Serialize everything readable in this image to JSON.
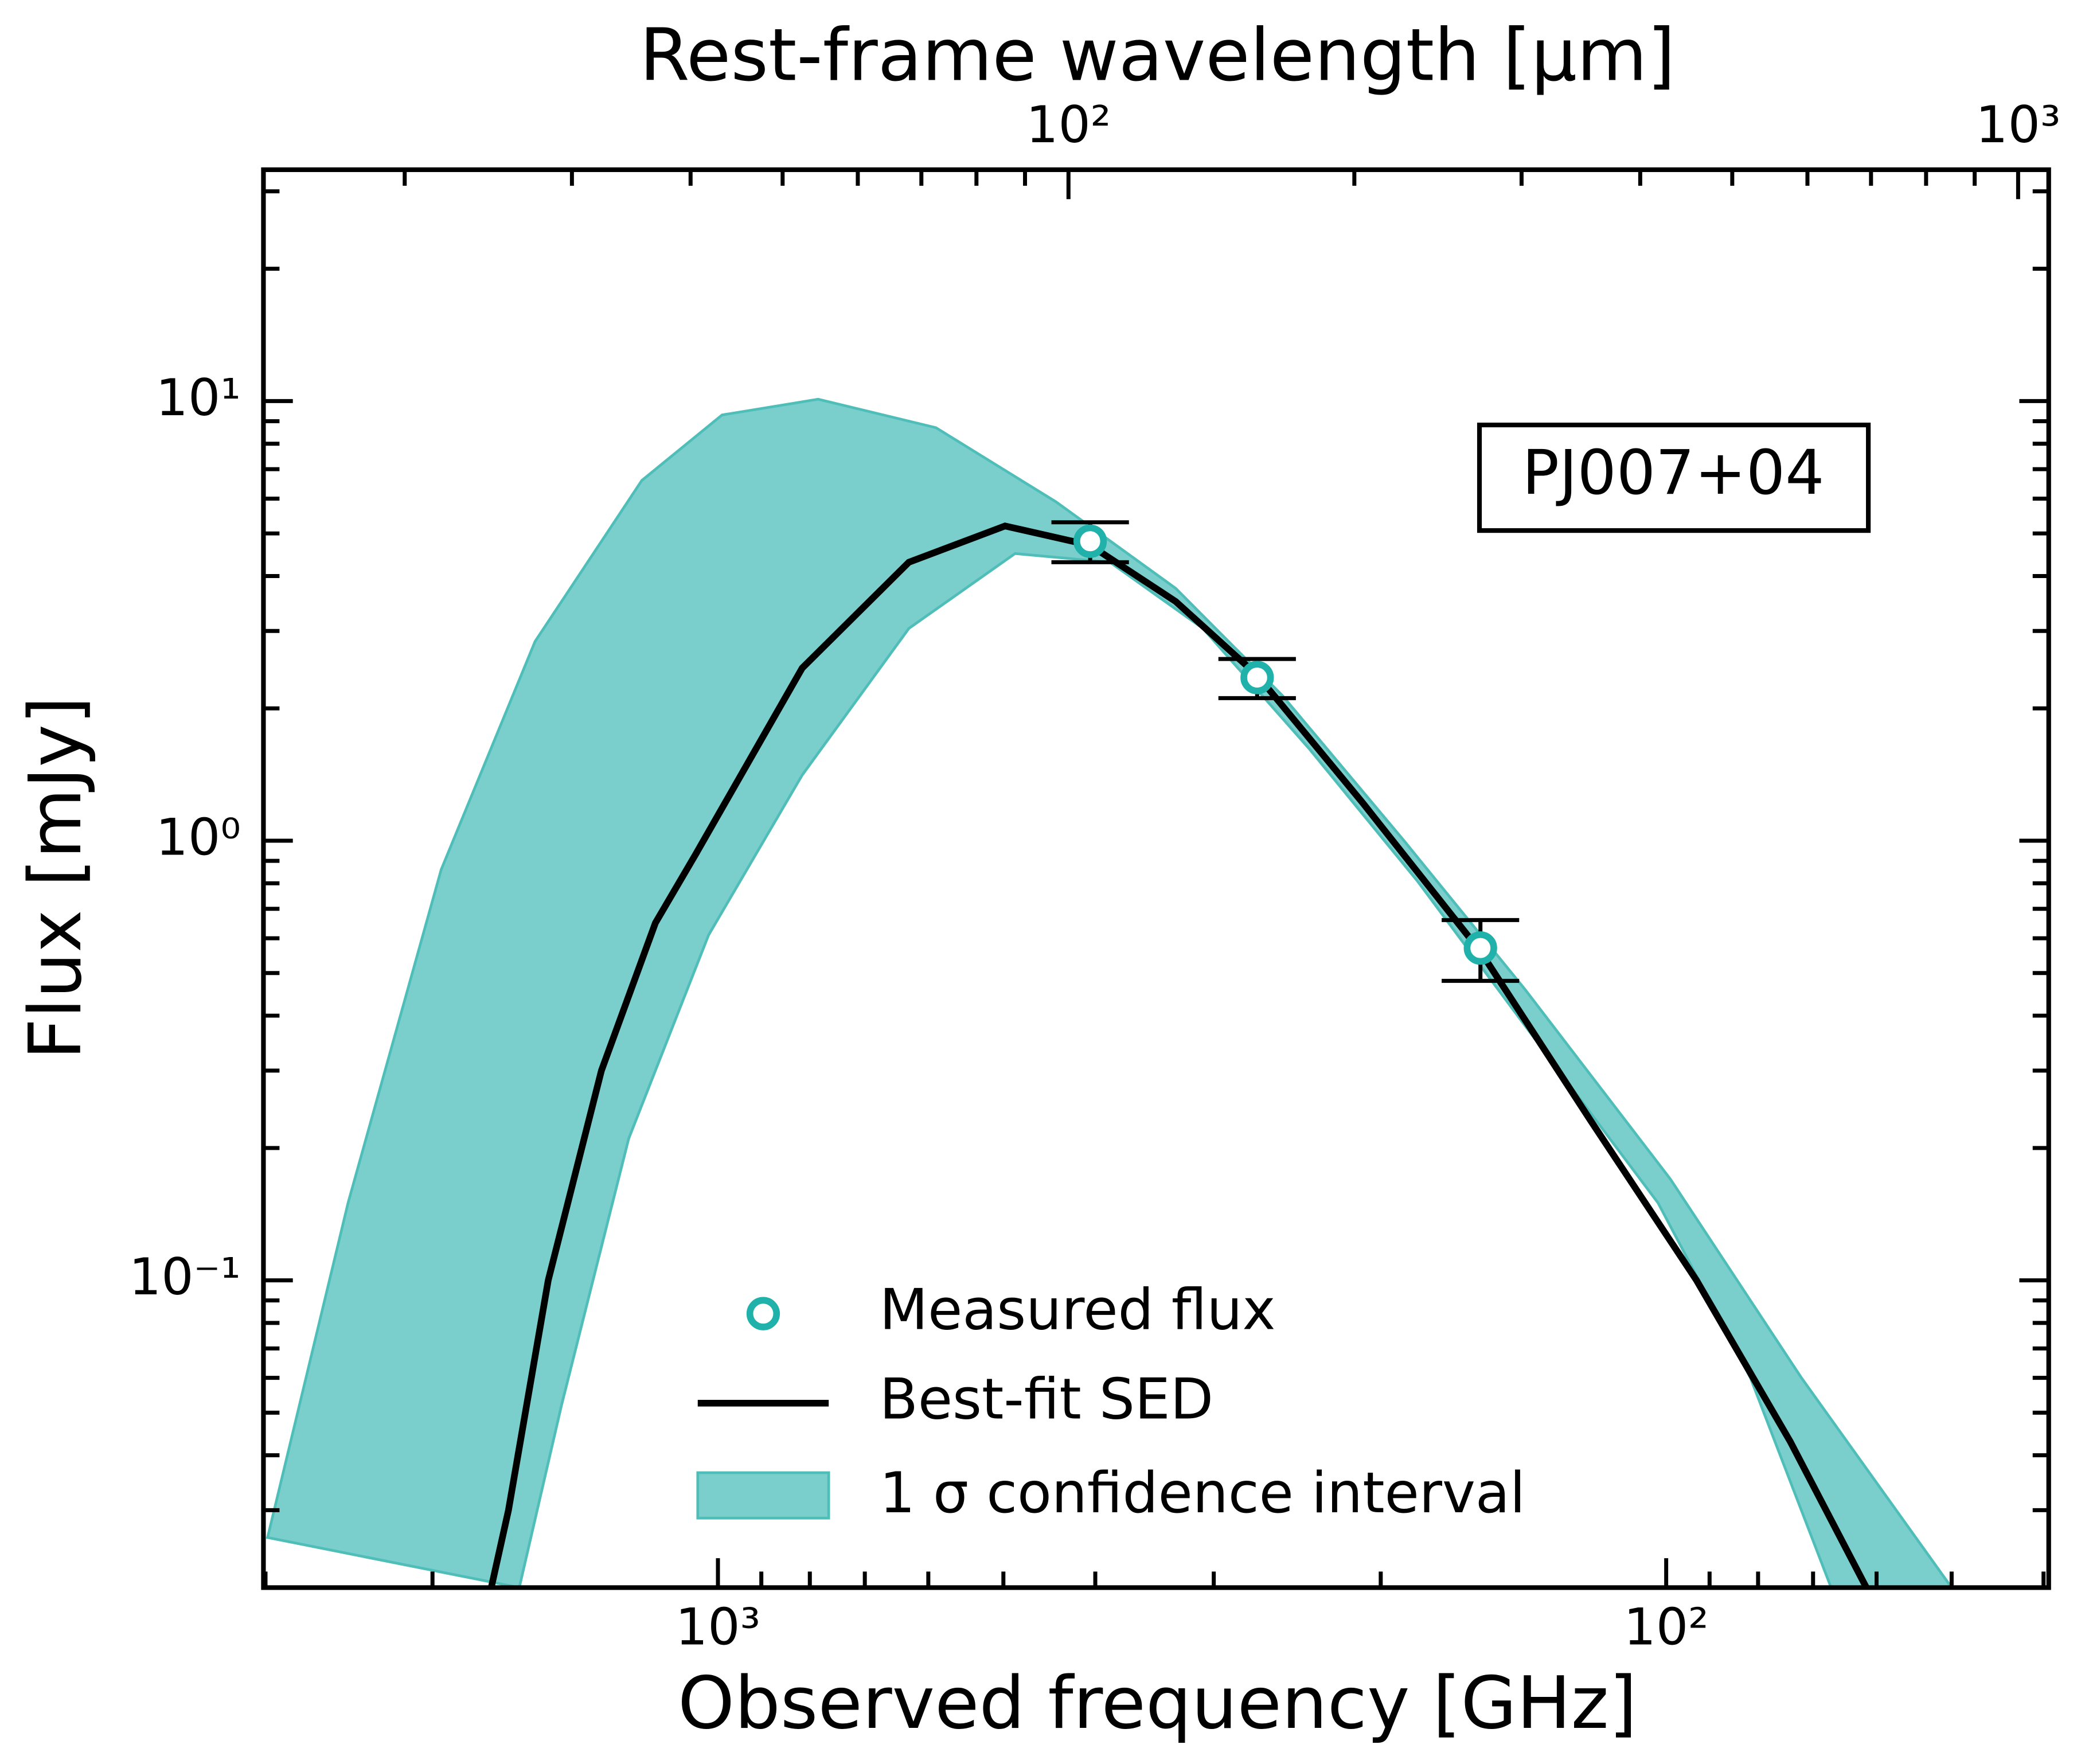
{
  "chart_data": {
    "type": "sed",
    "xlabel": "Observed frequency [GHz]",
    "ylabel": "Flux [mJy]",
    "x2label": "Rest-frame wavelength [μm]",
    "annotation": "PJ007+04",
    "xscale": "log",
    "yscale": "log",
    "x2scale": "log",
    "xlim": [
      3015,
      39.5
    ],
    "ylim": [
      0.02,
      33.6
    ],
    "x2lim": [
      14.2,
      1077
    ],
    "xticks": [
      {
        "value": 1000,
        "label": "10³"
      },
      {
        "value": 100,
        "label": "10²"
      }
    ],
    "xminorticks": [
      3000,
      2000,
      900,
      800,
      700,
      600,
      500,
      400,
      300,
      200,
      90,
      80,
      70,
      60,
      50,
      40
    ],
    "yticks": [
      {
        "value": 0.1,
        "label": "10⁻¹"
      },
      {
        "value": 1,
        "label": "10⁰"
      },
      {
        "value": 10,
        "label": "10¹"
      }
    ],
    "yminorticks": [
      0.02,
      0.03,
      0.04,
      0.05,
      0.06,
      0.07,
      0.08,
      0.09,
      0.2,
      0.3,
      0.4,
      0.5,
      0.6,
      0.7,
      0.8,
      0.9,
      2,
      3,
      4,
      5,
      6,
      7,
      8,
      9,
      20,
      30
    ],
    "x2ticks": [
      {
        "value": 100,
        "label": "10²"
      },
      {
        "value": 1000,
        "label": "10³"
      }
    ],
    "x2minorticks": [
      20,
      30,
      40,
      50,
      60,
      70,
      80,
      90,
      200,
      300,
      400,
      500,
      600,
      700,
      800,
      900
    ],
    "legend": "lower center",
    "points": {
      "name": "Measured flux",
      "color": "#20b2aa",
      "x": [
        405,
        270,
        157
      ],
      "values": [
        4.8,
        2.35,
        0.57
      ],
      "errors": [
        0.5,
        0.24,
        0.09
      ]
    },
    "fit": {
      "name": "Best-fit SED",
      "color": "#000000",
      "x": [
        1734,
        1663,
        1510,
        1327,
        1164,
        1056,
        815,
        629,
        498,
        405,
        329,
        270,
        209,
        157,
        120,
        92.9,
        74,
        61.5
      ],
      "values": [
        0.02,
        0.03,
        0.1,
        0.3,
        0.65,
        0.93,
        2.47,
        4.3,
        5.2,
        4.7,
        3.5,
        2.38,
        1.22,
        0.56,
        0.23,
        0.1,
        0.043,
        0.02
      ]
    },
    "band": {
      "name": "1 σ confidence interval",
      "color": "#7acfcc",
      "edge": "#4fbdb8",
      "upper": {
        "x": [
          2985,
          2455,
          1958,
          1559,
          1203,
          990,
          784,
          589,
          440,
          329,
          254,
          189,
          141,
          99,
          72,
          50
        ],
        "values": [
          0.026,
          0.15,
          0.86,
          2.84,
          6.6,
          9.3,
          10.1,
          8.7,
          5.9,
          3.75,
          2.14,
          1.0,
          0.46,
          0.17,
          0.06,
          0.02
        ]
      },
      "lower": {
        "x": [
          1620,
          1462,
          1242,
          1023,
          815,
          629,
          486,
          386,
          308,
          238,
          183,
          137,
          102,
          81.5,
          67
        ],
        "values": [
          0.02,
          0.052,
          0.21,
          0.61,
          1.41,
          3.04,
          4.5,
          4.3,
          3.04,
          1.62,
          0.81,
          0.35,
          0.15,
          0.06,
          0.02
        ]
      }
    }
  }
}
